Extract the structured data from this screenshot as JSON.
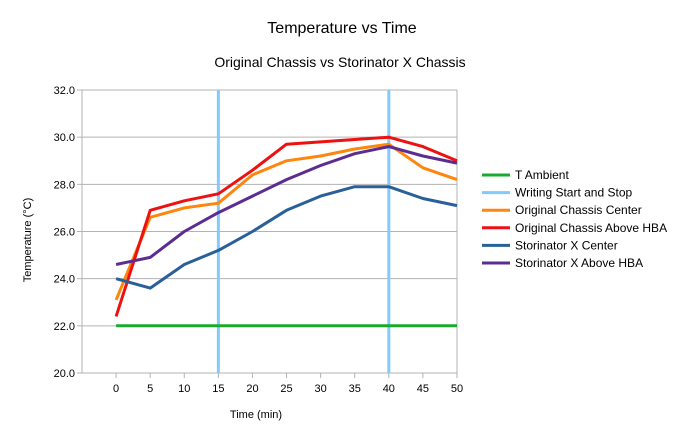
{
  "chart_data": {
    "type": "line",
    "title": "Temperature vs Time",
    "subtitle": "Original Chassis vs Storinator X Chassis",
    "xlabel": "Time (min)",
    "ylabel": "Temperature (°C)",
    "xlim": [
      -5,
      50
    ],
    "ylim": [
      20,
      32
    ],
    "x_ticks": [
      0,
      5,
      10,
      15,
      20,
      25,
      30,
      35,
      40,
      45,
      50
    ],
    "y_ticks": [
      "20.0",
      "22.0",
      "24.0",
      "26.0",
      "28.0",
      "30.0",
      "32.0"
    ],
    "grid": "horizontal",
    "legend_position": "right",
    "x": [
      0,
      5,
      10,
      15,
      20,
      25,
      30,
      35,
      40,
      45,
      50
    ],
    "series": [
      {
        "name": "T Ambient",
        "color": "#1aab2e",
        "values": [
          22,
          22,
          22,
          22,
          22,
          22,
          22,
          22,
          22,
          22,
          22
        ]
      },
      {
        "name": "Writing Start and Stop",
        "color": "#83caff",
        "kind": "vertical-markers",
        "x_positions": [
          15,
          40
        ]
      },
      {
        "name": "Original Chassis Center",
        "color": "#ff860d",
        "values": [
          23.1,
          26.6,
          27.0,
          27.2,
          28.4,
          29.0,
          29.2,
          29.5,
          29.7,
          28.7,
          28.2
        ]
      },
      {
        "name": "Original Chassis Above HBA",
        "color": "#ee1111",
        "values": [
          22.4,
          26.9,
          27.3,
          27.6,
          28.6,
          29.7,
          29.8,
          29.9,
          30.0,
          29.6,
          29.0
        ]
      },
      {
        "name": "Storinator X Center",
        "color": "#2a6099",
        "values": [
          24.0,
          23.6,
          24.6,
          25.2,
          26.0,
          26.9,
          27.5,
          27.9,
          27.9,
          27.4,
          27.1
        ]
      },
      {
        "name": "Storinator X Above HBA",
        "color": "#5c2d91",
        "values": [
          24.6,
          24.9,
          26.0,
          26.8,
          27.5,
          28.2,
          28.8,
          29.3,
          29.6,
          29.2,
          28.9
        ]
      }
    ]
  }
}
